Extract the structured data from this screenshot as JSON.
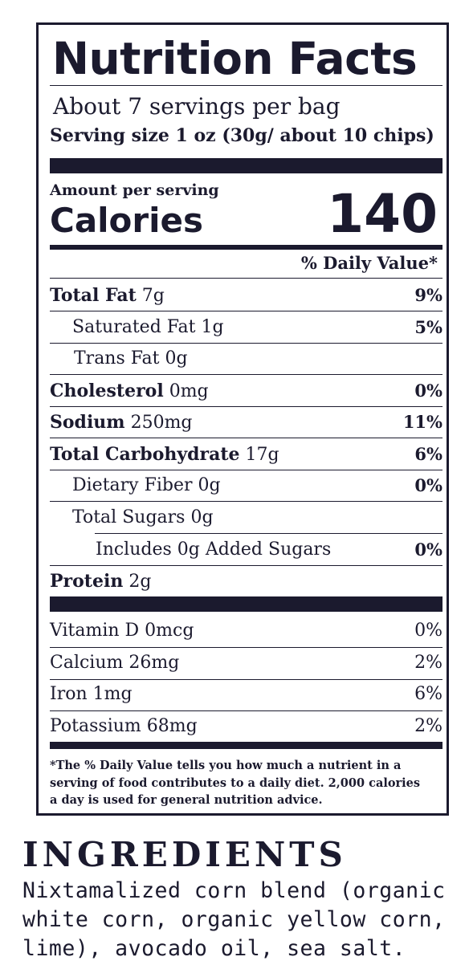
{
  "nutrition_facts": {
    "title": "Nutrition Facts",
    "servings_per_container": "About 7 servings per bag",
    "serving_size": "Serving size 1 oz (30g/ about 10 chips)",
    "amount_per_serving": "Amount per serving",
    "calories_label": "Calories",
    "calories_value": "140",
    "daily_value_header": "% Daily Value*",
    "nutrients": [
      {
        "name": "Total Fat",
        "amount": "7g",
        "dv": "9%"
      },
      {
        "name": "Saturated Fat",
        "amount": "1g",
        "dv": "5%"
      },
      {
        "name": "Trans Fat",
        "amount": "0g",
        "dv": ""
      },
      {
        "name": "Cholesterol",
        "amount": "0mg",
        "dv": "0%"
      },
      {
        "name": "Sodium",
        "amount": "250mg",
        "dv": "11%"
      },
      {
        "name": "Total Carbohydrate",
        "amount": "17g",
        "dv": "6%"
      },
      {
        "name": "Dietary Fiber",
        "amount": "0g",
        "dv": "0%"
      },
      {
        "name": "Total Sugars",
        "amount": "0g",
        "dv": ""
      },
      {
        "name": "Includes 0g Added Sugars",
        "amount": "",
        "dv": "0%"
      },
      {
        "name": "Protein",
        "amount": "2g",
        "dv": ""
      }
    ],
    "vitamins": [
      {
        "name": "Vitamin D 0mcg",
        "dv": "0%"
      },
      {
        "name": "Calcium 26mg",
        "dv": "2%"
      },
      {
        "name": "Iron 1mg",
        "dv": "6%"
      },
      {
        "name": "Potassium 68mg",
        "dv": "2%"
      }
    ],
    "footnote_lines": [
      "*The % Daily Value tells you how much a nutrient in a",
      "serving of food contributes to a daily diet. 2,000 calories",
      "a day is used for general nutrition advice."
    ]
  },
  "ingredients": {
    "heading": "INGREDIENTS",
    "lines": [
      "Nixtamalized corn blend (organic",
      "white corn, organic yellow corn,",
      "lime), avocado oil, sea salt."
    ]
  },
  "colors": {
    "ink": "#1b1a2e",
    "background": "#ffffff"
  }
}
